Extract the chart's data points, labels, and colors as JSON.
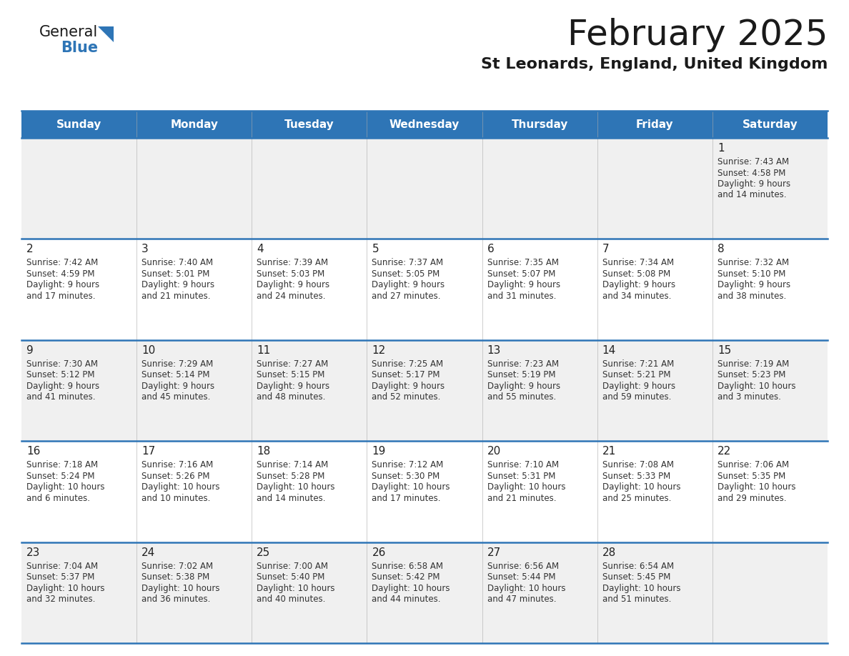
{
  "title": "February 2025",
  "subtitle": "St Leonards, England, United Kingdom",
  "days_of_week": [
    "Sunday",
    "Monday",
    "Tuesday",
    "Wednesday",
    "Thursday",
    "Friday",
    "Saturday"
  ],
  "header_bg": "#2e75b6",
  "header_text": "#ffffff",
  "cell_bg_odd": "#f0f0f0",
  "cell_bg_even": "#ffffff",
  "separator_color": "#2e75b6",
  "day_number_color": "#222222",
  "cell_text_color": "#333333",
  "title_color": "#1a1a1a",
  "subtitle_color": "#1a1a1a",
  "logo_general_color": "#1a1a1a",
  "logo_blue_color": "#2e75b6",
  "logo_triangle_color": "#2e75b6",
  "calendar_data": [
    [
      null,
      null,
      null,
      null,
      null,
      null,
      {
        "day": 1,
        "sunrise": "7:43 AM",
        "sunset": "4:58 PM",
        "daylight": "9 hours\nand 14 minutes."
      }
    ],
    [
      {
        "day": 2,
        "sunrise": "7:42 AM",
        "sunset": "4:59 PM",
        "daylight": "9 hours\nand 17 minutes."
      },
      {
        "day": 3,
        "sunrise": "7:40 AM",
        "sunset": "5:01 PM",
        "daylight": "9 hours\nand 21 minutes."
      },
      {
        "day": 4,
        "sunrise": "7:39 AM",
        "sunset": "5:03 PM",
        "daylight": "9 hours\nand 24 minutes."
      },
      {
        "day": 5,
        "sunrise": "7:37 AM",
        "sunset": "5:05 PM",
        "daylight": "9 hours\nand 27 minutes."
      },
      {
        "day": 6,
        "sunrise": "7:35 AM",
        "sunset": "5:07 PM",
        "daylight": "9 hours\nand 31 minutes."
      },
      {
        "day": 7,
        "sunrise": "7:34 AM",
        "sunset": "5:08 PM",
        "daylight": "9 hours\nand 34 minutes."
      },
      {
        "day": 8,
        "sunrise": "7:32 AM",
        "sunset": "5:10 PM",
        "daylight": "9 hours\nand 38 minutes."
      }
    ],
    [
      {
        "day": 9,
        "sunrise": "7:30 AM",
        "sunset": "5:12 PM",
        "daylight": "9 hours\nand 41 minutes."
      },
      {
        "day": 10,
        "sunrise": "7:29 AM",
        "sunset": "5:14 PM",
        "daylight": "9 hours\nand 45 minutes."
      },
      {
        "day": 11,
        "sunrise": "7:27 AM",
        "sunset": "5:15 PM",
        "daylight": "9 hours\nand 48 minutes."
      },
      {
        "day": 12,
        "sunrise": "7:25 AM",
        "sunset": "5:17 PM",
        "daylight": "9 hours\nand 52 minutes."
      },
      {
        "day": 13,
        "sunrise": "7:23 AM",
        "sunset": "5:19 PM",
        "daylight": "9 hours\nand 55 minutes."
      },
      {
        "day": 14,
        "sunrise": "7:21 AM",
        "sunset": "5:21 PM",
        "daylight": "9 hours\nand 59 minutes."
      },
      {
        "day": 15,
        "sunrise": "7:19 AM",
        "sunset": "5:23 PM",
        "daylight": "10 hours\nand 3 minutes."
      }
    ],
    [
      {
        "day": 16,
        "sunrise": "7:18 AM",
        "sunset": "5:24 PM",
        "daylight": "10 hours\nand 6 minutes."
      },
      {
        "day": 17,
        "sunrise": "7:16 AM",
        "sunset": "5:26 PM",
        "daylight": "10 hours\nand 10 minutes."
      },
      {
        "day": 18,
        "sunrise": "7:14 AM",
        "sunset": "5:28 PM",
        "daylight": "10 hours\nand 14 minutes."
      },
      {
        "day": 19,
        "sunrise": "7:12 AM",
        "sunset": "5:30 PM",
        "daylight": "10 hours\nand 17 minutes."
      },
      {
        "day": 20,
        "sunrise": "7:10 AM",
        "sunset": "5:31 PM",
        "daylight": "10 hours\nand 21 minutes."
      },
      {
        "day": 21,
        "sunrise": "7:08 AM",
        "sunset": "5:33 PM",
        "daylight": "10 hours\nand 25 minutes."
      },
      {
        "day": 22,
        "sunrise": "7:06 AM",
        "sunset": "5:35 PM",
        "daylight": "10 hours\nand 29 minutes."
      }
    ],
    [
      {
        "day": 23,
        "sunrise": "7:04 AM",
        "sunset": "5:37 PM",
        "daylight": "10 hours\nand 32 minutes."
      },
      {
        "day": 24,
        "sunrise": "7:02 AM",
        "sunset": "5:38 PM",
        "daylight": "10 hours\nand 36 minutes."
      },
      {
        "day": 25,
        "sunrise": "7:00 AM",
        "sunset": "5:40 PM",
        "daylight": "10 hours\nand 40 minutes."
      },
      {
        "day": 26,
        "sunrise": "6:58 AM",
        "sunset": "5:42 PM",
        "daylight": "10 hours\nand 44 minutes."
      },
      {
        "day": 27,
        "sunrise": "6:56 AM",
        "sunset": "5:44 PM",
        "daylight": "10 hours\nand 47 minutes."
      },
      {
        "day": 28,
        "sunrise": "6:54 AM",
        "sunset": "5:45 PM",
        "daylight": "10 hours\nand 51 minutes."
      },
      null
    ]
  ]
}
